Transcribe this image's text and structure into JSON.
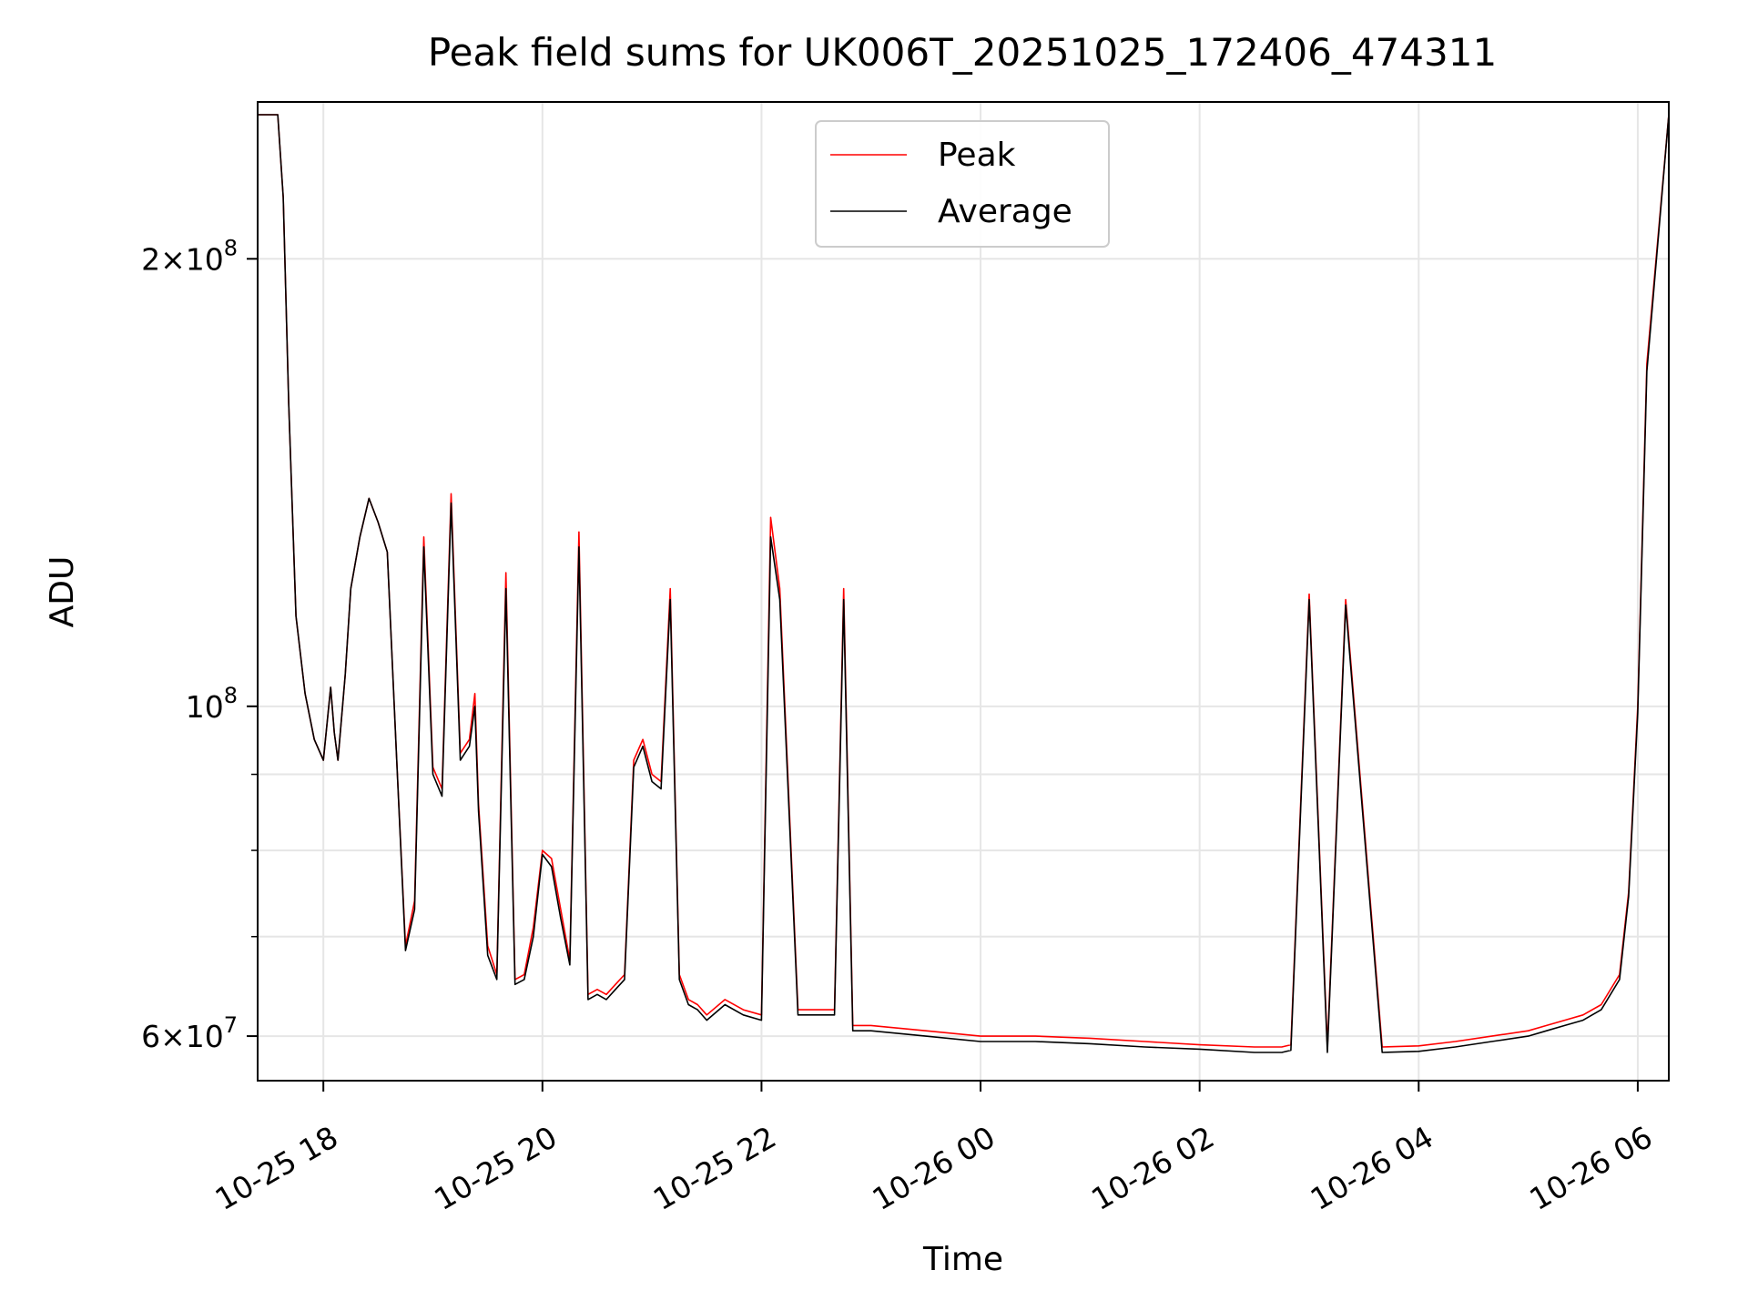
{
  "chart_data": {
    "type": "line",
    "title": "Peak field sums for UK006T_20251025_172406_474311",
    "xlabel": "Time",
    "ylabel": "ADU",
    "y_scale": "log",
    "ylim": [
      56000000,
      255000000
    ],
    "xlim": [
      "2025-10-25 17:24",
      "2025-10-26 06:17"
    ],
    "grid": true,
    "legend_position": "top-center",
    "x_ticks": [
      {
        "t": "2025-10-25 18:00",
        "label": "10-25 18"
      },
      {
        "t": "2025-10-25 20:00",
        "label": "10-25 20"
      },
      {
        "t": "2025-10-25 22:00",
        "label": "10-25 22"
      },
      {
        "t": "2025-10-26 00:00",
        "label": "10-26 00"
      },
      {
        "t": "2025-10-26 02:00",
        "label": "10-26 02"
      },
      {
        "t": "2025-10-26 04:00",
        "label": "10-26 04"
      },
      {
        "t": "2025-10-26 06:00",
        "label": "10-26 06"
      }
    ],
    "y_major_ticks": [
      {
        "v": 60000000,
        "mantissa": "6",
        "exp": "7"
      },
      {
        "v": 100000000,
        "mantissa": "",
        "exp": "8"
      },
      {
        "v": 200000000,
        "mantissa": "2",
        "exp": "8"
      }
    ],
    "y_minor_ticks": [
      70000000,
      80000000,
      90000000
    ],
    "series": [
      {
        "name": "Peak",
        "color": "#ff0000",
        "x": [
          "2025-10-25 17:24",
          "2025-10-25 17:35",
          "2025-10-25 17:38",
          "2025-10-25 17:41",
          "2025-10-25 17:45",
          "2025-10-25 17:50",
          "2025-10-25 17:55",
          "2025-10-25 18:00",
          "2025-10-25 18:04",
          "2025-10-25 18:06",
          "2025-10-25 18:08",
          "2025-10-25 18:12",
          "2025-10-25 18:15",
          "2025-10-25 18:20",
          "2025-10-25 18:25",
          "2025-10-25 18:30",
          "2025-10-25 18:35",
          "2025-10-25 18:40",
          "2025-10-25 18:45",
          "2025-10-25 18:50",
          "2025-10-25 18:55",
          "2025-10-25 19:00",
          "2025-10-25 19:05",
          "2025-10-25 19:10",
          "2025-10-25 19:15",
          "2025-10-25 19:20",
          "2025-10-25 19:23",
          "2025-10-25 19:25",
          "2025-10-25 19:30",
          "2025-10-25 19:35",
          "2025-10-25 19:40",
          "2025-10-25 19:45",
          "2025-10-25 19:50",
          "2025-10-25 19:55",
          "2025-10-25 20:00",
          "2025-10-25 20:05",
          "2025-10-25 20:10",
          "2025-10-25 20:15",
          "2025-10-25 20:20",
          "2025-10-25 20:25",
          "2025-10-25 20:30",
          "2025-10-25 20:35",
          "2025-10-25 20:40",
          "2025-10-25 20:45",
          "2025-10-25 20:50",
          "2025-10-25 20:55",
          "2025-10-25 21:00",
          "2025-10-25 21:05",
          "2025-10-25 21:10",
          "2025-10-25 21:15",
          "2025-10-25 21:20",
          "2025-10-25 21:25",
          "2025-10-25 21:30",
          "2025-10-25 21:40",
          "2025-10-25 21:50",
          "2025-10-25 22:00",
          "2025-10-25 22:05",
          "2025-10-25 22:10",
          "2025-10-25 22:20",
          "2025-10-25 22:30",
          "2025-10-25 22:40",
          "2025-10-25 22:45",
          "2025-10-25 22:50",
          "2025-10-25 23:00",
          "2025-10-25 23:30",
          "2025-10-26 00:00",
          "2025-10-26 00:30",
          "2025-10-26 01:00",
          "2025-10-26 01:30",
          "2025-10-26 02:00",
          "2025-10-26 02:30",
          "2025-10-26 02:45",
          "2025-10-26 02:50",
          "2025-10-26 03:00",
          "2025-10-26 03:10",
          "2025-10-26 03:20",
          "2025-10-26 03:40",
          "2025-10-26 04:00",
          "2025-10-26 04:20",
          "2025-10-26 04:40",
          "2025-10-26 05:00",
          "2025-10-26 05:10",
          "2025-10-26 05:20",
          "2025-10-26 05:30",
          "2025-10-26 05:40",
          "2025-10-26 05:50",
          "2025-10-26 05:55",
          "2025-10-26 06:00",
          "2025-10-26 06:05",
          "2025-10-26 06:17"
        ],
        "y": [
          250000000,
          250000000,
          220000000,
          160000000,
          115000000,
          102000000,
          95000000,
          92000000,
          103000000,
          96000000,
          92000000,
          105000000,
          120000000,
          130000000,
          138000000,
          133000000,
          127000000,
          93000000,
          69000000,
          74000000,
          130000000,
          91000000,
          88000000,
          139000000,
          93000000,
          95000000,
          102000000,
          86000000,
          69000000,
          66000000,
          123000000,
          65500000,
          66000000,
          71000000,
          80000000,
          79000000,
          73000000,
          67500000,
          131000000,
          64000000,
          64500000,
          64000000,
          65000000,
          66000000,
          92000000,
          95000000,
          90000000,
          89000000,
          120000000,
          66000000,
          63500000,
          63000000,
          62000000,
          63500000,
          62500000,
          62000000,
          134000000,
          120000000,
          62500000,
          62500000,
          62500000,
          120000000,
          61000000,
          61000000,
          60500000,
          60000000,
          60000000,
          59800000,
          59500000,
          59200000,
          59000000,
          59000000,
          59200000,
          119000000,
          59000000,
          118000000,
          59000000,
          59100000,
          59500000,
          60000000,
          60500000,
          61000000,
          61500000,
          62000000,
          63000000,
          66000000,
          75000000,
          100000000,
          170000000,
          250000000
        ]
      },
      {
        "name": "Average",
        "color": "#000000",
        "x": [
          "2025-10-25 17:24",
          "2025-10-25 17:35",
          "2025-10-25 17:38",
          "2025-10-25 17:41",
          "2025-10-25 17:45",
          "2025-10-25 17:50",
          "2025-10-25 17:55",
          "2025-10-25 18:00",
          "2025-10-25 18:04",
          "2025-10-25 18:06",
          "2025-10-25 18:08",
          "2025-10-25 18:12",
          "2025-10-25 18:15",
          "2025-10-25 18:20",
          "2025-10-25 18:25",
          "2025-10-25 18:30",
          "2025-10-25 18:35",
          "2025-10-25 18:40",
          "2025-10-25 18:45",
          "2025-10-25 18:50",
          "2025-10-25 18:55",
          "2025-10-25 19:00",
          "2025-10-25 19:05",
          "2025-10-25 19:10",
          "2025-10-25 19:15",
          "2025-10-25 19:20",
          "2025-10-25 19:23",
          "2025-10-25 19:25",
          "2025-10-25 19:30",
          "2025-10-25 19:35",
          "2025-10-25 19:40",
          "2025-10-25 19:45",
          "2025-10-25 19:50",
          "2025-10-25 19:55",
          "2025-10-25 20:00",
          "2025-10-25 20:05",
          "2025-10-25 20:10",
          "2025-10-25 20:15",
          "2025-10-25 20:20",
          "2025-10-25 20:25",
          "2025-10-25 20:30",
          "2025-10-25 20:35",
          "2025-10-25 20:40",
          "2025-10-25 20:45",
          "2025-10-25 20:50",
          "2025-10-25 20:55",
          "2025-10-25 21:00",
          "2025-10-25 21:05",
          "2025-10-25 21:10",
          "2025-10-25 21:15",
          "2025-10-25 21:20",
          "2025-10-25 21:25",
          "2025-10-25 21:30",
          "2025-10-25 21:40",
          "2025-10-25 21:50",
          "2025-10-25 22:00",
          "2025-10-25 22:05",
          "2025-10-25 22:10",
          "2025-10-25 22:20",
          "2025-10-25 22:30",
          "2025-10-25 22:40",
          "2025-10-25 22:45",
          "2025-10-25 22:50",
          "2025-10-25 23:00",
          "2025-10-25 23:30",
          "2025-10-26 00:00",
          "2025-10-26 00:30",
          "2025-10-26 01:00",
          "2025-10-26 01:30",
          "2025-10-26 02:00",
          "2025-10-26 02:30",
          "2025-10-26 02:45",
          "2025-10-26 02:50",
          "2025-10-26 03:00",
          "2025-10-26 03:10",
          "2025-10-26 03:20",
          "2025-10-26 03:40",
          "2025-10-26 04:00",
          "2025-10-26 04:20",
          "2025-10-26 04:40",
          "2025-10-26 05:00",
          "2025-10-26 05:10",
          "2025-10-26 05:20",
          "2025-10-26 05:30",
          "2025-10-26 05:40",
          "2025-10-26 05:50",
          "2025-10-26 05:55",
          "2025-10-26 06:00",
          "2025-10-26 06:05",
          "2025-10-26 06:17"
        ],
        "y": [
          250000000,
          250000000,
          220000000,
          160000000,
          115000000,
          102000000,
          95000000,
          92000000,
          103000000,
          96000000,
          92000000,
          105000000,
          120000000,
          130000000,
          138000000,
          133000000,
          127000000,
          93000000,
          68500000,
          73000000,
          128000000,
          90000000,
          87000000,
          137000000,
          92000000,
          94000000,
          100000000,
          85000000,
          68000000,
          65500000,
          120000000,
          65000000,
          65500000,
          70000000,
          79500000,
          78000000,
          72000000,
          67000000,
          128000000,
          63500000,
          64000000,
          63500000,
          64500000,
          65500000,
          91000000,
          94000000,
          89000000,
          88000000,
          118000000,
          65500000,
          63000000,
          62500000,
          61500000,
          63000000,
          62000000,
          61500000,
          130000000,
          118000000,
          62000000,
          62000000,
          62000000,
          118000000,
          60500000,
          60500000,
          60000000,
          59500000,
          59500000,
          59300000,
          59000000,
          58800000,
          58500000,
          58500000,
          58700000,
          118000000,
          58500000,
          117000000,
          58500000,
          58600000,
          59000000,
          59500000,
          60000000,
          60500000,
          61000000,
          61500000,
          62500000,
          65500000,
          74500000,
          99000000,
          168000000,
          250000000
        ]
      }
    ]
  }
}
